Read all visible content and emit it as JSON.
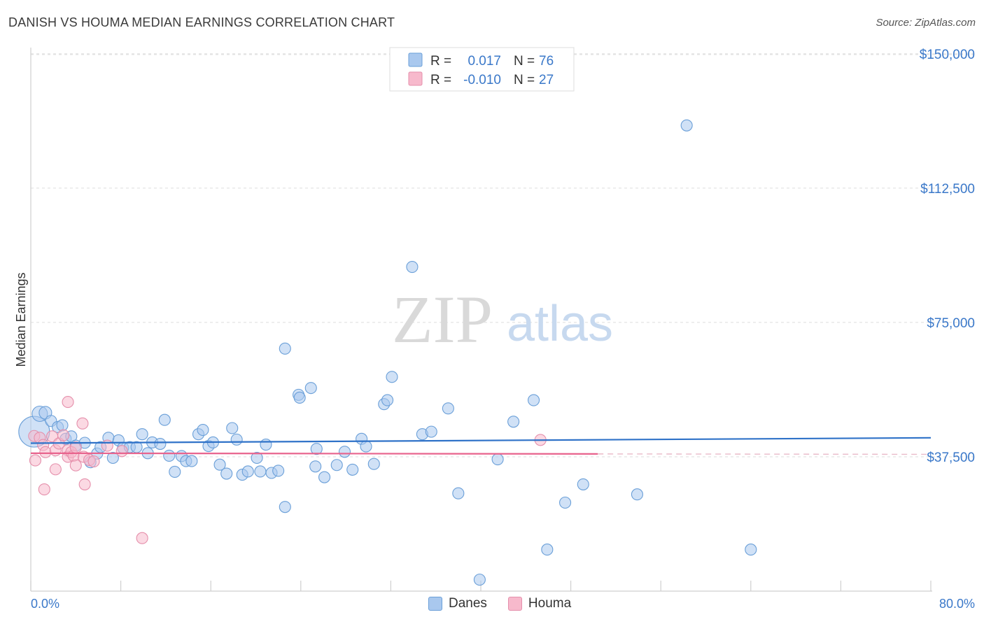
{
  "header": {
    "title": "DANISH VS HOUMA MEDIAN EARNINGS CORRELATION CHART",
    "source": "Source: ZipAtlas.com"
  },
  "watermark": {
    "zip": "ZIP",
    "atlas": "atlas"
  },
  "colors": {
    "danes_fill": "#a9c8ee",
    "danes_stroke": "#6a9fd8",
    "danes_line": "#2f72c8",
    "houma_fill": "#f7b9cc",
    "houma_stroke": "#e58fab",
    "houma_line": "#e8638d",
    "axis_label": "#3a78c9"
  },
  "stats_legend": [
    {
      "r_label": "R =",
      "r_value": "0.017",
      "n_label": "N =",
      "n_value": "76"
    },
    {
      "r_label": "R =",
      "r_value": "-0.010",
      "n_label": "N =",
      "n_value": "27"
    }
  ],
  "bottom_legend": [
    "Danes",
    "Houma"
  ],
  "chart_data": {
    "type": "scatter",
    "title": "DANISH VS HOUMA MEDIAN EARNINGS CORRELATION CHART",
    "xlabel": "",
    "ylabel": "Median Earnings",
    "xlim": [
      0,
      80
    ],
    "ylim": [
      0,
      157000
    ],
    "x_tick_labels": [
      "0.0%",
      "80.0%"
    ],
    "y_ticks": [
      37500,
      75000,
      112500,
      150000
    ],
    "y_tick_labels": [
      "$37,500",
      "$75,000",
      "$112,500",
      "$150,000"
    ],
    "series": [
      {
        "name": "Danes",
        "trend": {
          "x": [
            0,
            80
          ],
          "y": [
            41300,
            42800
          ]
        },
        "points": [
          {
            "x": 0.3,
            "y": 44500,
            "s": 22
          },
          {
            "x": 0.8,
            "y": 49500,
            "s": 11
          },
          {
            "x": 1.3,
            "y": 49800,
            "s": 9
          },
          {
            "x": 1.8,
            "y": 47500,
            "s": 8
          },
          {
            "x": 2.4,
            "y": 45800,
            "s": 8
          },
          {
            "x": 2.8,
            "y": 46300,
            "s": 8
          },
          {
            "x": 3.1,
            "y": 42500,
            "s": 8
          },
          {
            "x": 3.6,
            "y": 43200,
            "s": 8
          },
          {
            "x": 4.0,
            "y": 40600,
            "s": 8
          },
          {
            "x": 4.8,
            "y": 41400,
            "s": 8
          },
          {
            "x": 5.3,
            "y": 36000,
            "s": 8
          },
          {
            "x": 5.9,
            "y": 38400,
            "s": 8
          },
          {
            "x": 6.2,
            "y": 40200,
            "s": 8
          },
          {
            "x": 6.9,
            "y": 42800,
            "s": 8
          },
          {
            "x": 7.3,
            "y": 37200,
            "s": 8
          },
          {
            "x": 7.8,
            "y": 42100,
            "s": 8
          },
          {
            "x": 8.2,
            "y": 40000,
            "s": 8
          },
          {
            "x": 8.8,
            "y": 40200,
            "s": 8
          },
          {
            "x": 9.4,
            "y": 40200,
            "s": 8
          },
          {
            "x": 9.9,
            "y": 43800,
            "s": 8
          },
          {
            "x": 10.4,
            "y": 38500,
            "s": 8
          },
          {
            "x": 10.8,
            "y": 41500,
            "s": 8
          },
          {
            "x": 11.5,
            "y": 41100,
            "s": 8
          },
          {
            "x": 11.9,
            "y": 47800,
            "s": 8
          },
          {
            "x": 12.3,
            "y": 37800,
            "s": 8
          },
          {
            "x": 12.8,
            "y": 33300,
            "s": 8
          },
          {
            "x": 13.4,
            "y": 37700,
            "s": 8
          },
          {
            "x": 13.8,
            "y": 36300,
            "s": 8
          },
          {
            "x": 14.3,
            "y": 36300,
            "s": 8
          },
          {
            "x": 14.9,
            "y": 43800,
            "s": 8
          },
          {
            "x": 15.3,
            "y": 45000,
            "s": 8
          },
          {
            "x": 15.8,
            "y": 40500,
            "s": 8
          },
          {
            "x": 16.2,
            "y": 41500,
            "s": 8
          },
          {
            "x": 16.8,
            "y": 35300,
            "s": 8
          },
          {
            "x": 17.4,
            "y": 32800,
            "s": 8
          },
          {
            "x": 17.9,
            "y": 45500,
            "s": 8
          },
          {
            "x": 18.3,
            "y": 42300,
            "s": 8
          },
          {
            "x": 18.8,
            "y": 32500,
            "s": 8
          },
          {
            "x": 19.3,
            "y": 33400,
            "s": 8
          },
          {
            "x": 20.1,
            "y": 37200,
            "s": 8
          },
          {
            "x": 20.4,
            "y": 33400,
            "s": 8
          },
          {
            "x": 20.9,
            "y": 40900,
            "s": 8
          },
          {
            "x": 21.4,
            "y": 33000,
            "s": 8
          },
          {
            "x": 22.0,
            "y": 33600,
            "s": 8
          },
          {
            "x": 22.6,
            "y": 23500,
            "s": 8
          },
          {
            "x": 22.6,
            "y": 67700,
            "s": 8
          },
          {
            "x": 23.8,
            "y": 54800,
            "s": 8
          },
          {
            "x": 23.9,
            "y": 54000,
            "s": 8
          },
          {
            "x": 24.9,
            "y": 56700,
            "s": 8
          },
          {
            "x": 25.3,
            "y": 34800,
            "s": 8
          },
          {
            "x": 25.4,
            "y": 39700,
            "s": 8
          },
          {
            "x": 26.1,
            "y": 31800,
            "s": 8
          },
          {
            "x": 27.2,
            "y": 35200,
            "s": 8
          },
          {
            "x": 27.9,
            "y": 38900,
            "s": 8
          },
          {
            "x": 28.6,
            "y": 33900,
            "s": 8
          },
          {
            "x": 29.4,
            "y": 42500,
            "s": 8
          },
          {
            "x": 29.8,
            "y": 40400,
            "s": 8
          },
          {
            "x": 30.5,
            "y": 35500,
            "s": 8
          },
          {
            "x": 31.4,
            "y": 52200,
            "s": 8
          },
          {
            "x": 31.7,
            "y": 53300,
            "s": 8
          },
          {
            "x": 32.1,
            "y": 59800,
            "s": 8
          },
          {
            "x": 33.9,
            "y": 90500,
            "s": 8
          },
          {
            "x": 34.8,
            "y": 43800,
            "s": 8
          },
          {
            "x": 35.6,
            "y": 44500,
            "s": 8
          },
          {
            "x": 37.1,
            "y": 51000,
            "s": 8
          },
          {
            "x": 38.0,
            "y": 27300,
            "s": 8
          },
          {
            "x": 39.9,
            "y": 3200,
            "s": 8
          },
          {
            "x": 41.5,
            "y": 36800,
            "s": 8
          },
          {
            "x": 42.9,
            "y": 47300,
            "s": 8
          },
          {
            "x": 44.7,
            "y": 53300,
            "s": 8
          },
          {
            "x": 45.9,
            "y": 11600,
            "s": 8
          },
          {
            "x": 47.5,
            "y": 24700,
            "s": 8
          },
          {
            "x": 49.1,
            "y": 29800,
            "s": 8
          },
          {
            "x": 53.9,
            "y": 27000,
            "s": 8
          },
          {
            "x": 58.3,
            "y": 130000,
            "s": 8
          },
          {
            "x": 64.0,
            "y": 11600,
            "s": 8
          }
        ]
      },
      {
        "name": "Houma",
        "trend": {
          "x": [
            0,
            50.4
          ],
          "y": [
            38500,
            38300
          ]
        },
        "points": [
          {
            "x": 0.3,
            "y": 43300,
            "s": 8
          },
          {
            "x": 0.4,
            "y": 36500,
            "s": 8
          },
          {
            "x": 0.8,
            "y": 42800,
            "s": 8
          },
          {
            "x": 1.1,
            "y": 40800,
            "s": 8
          },
          {
            "x": 1.3,
            "y": 38800,
            "s": 8
          },
          {
            "x": 1.2,
            "y": 28400,
            "s": 8
          },
          {
            "x": 1.9,
            "y": 43200,
            "s": 8
          },
          {
            "x": 2.2,
            "y": 39300,
            "s": 8
          },
          {
            "x": 2.5,
            "y": 41200,
            "s": 8
          },
          {
            "x": 2.2,
            "y": 34000,
            "s": 8
          },
          {
            "x": 2.9,
            "y": 43500,
            "s": 8
          },
          {
            "x": 3.3,
            "y": 39300,
            "s": 8
          },
          {
            "x": 3.3,
            "y": 37500,
            "s": 8
          },
          {
            "x": 3.3,
            "y": 52800,
            "s": 8
          },
          {
            "x": 3.6,
            "y": 38800,
            "s": 8
          },
          {
            "x": 3.8,
            "y": 37800,
            "s": 8
          },
          {
            "x": 4.0,
            "y": 40100,
            "s": 8
          },
          {
            "x": 4.0,
            "y": 35100,
            "s": 8
          },
          {
            "x": 4.6,
            "y": 46800,
            "s": 8
          },
          {
            "x": 4.7,
            "y": 37500,
            "s": 8
          },
          {
            "x": 4.8,
            "y": 29800,
            "s": 8
          },
          {
            "x": 5.2,
            "y": 36600,
            "s": 8
          },
          {
            "x": 5.6,
            "y": 36200,
            "s": 8
          },
          {
            "x": 6.8,
            "y": 40600,
            "s": 8
          },
          {
            "x": 8.1,
            "y": 39100,
            "s": 8
          },
          {
            "x": 9.9,
            "y": 14800,
            "s": 8
          },
          {
            "x": 45.3,
            "y": 42200,
            "s": 8
          }
        ]
      }
    ]
  }
}
